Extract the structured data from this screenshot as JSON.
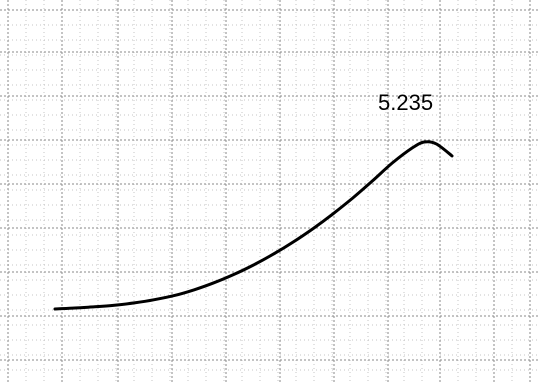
{
  "chart_data": {
    "type": "line",
    "title": "",
    "xlabel": "",
    "ylabel": "",
    "grid": true,
    "peak_label": "5.235",
    "series": [
      {
        "x": [
          0,
          0.05,
          0.1,
          0.15,
          0.2,
          0.25,
          0.3,
          0.35,
          0.4,
          0.45,
          0.5,
          0.55,
          0.6,
          0.65,
          0.7,
          0.75,
          0.8,
          0.85,
          0.9,
          0.93,
          0.96,
          1.0
        ],
        "values": [
          0.0,
          0.03,
          0.07,
          0.12,
          0.19,
          0.29,
          0.42,
          0.6,
          0.82,
          1.08,
          1.38,
          1.72,
          2.1,
          2.52,
          2.98,
          3.48,
          4.02,
          4.58,
          5.05,
          5.235,
          5.18,
          4.8
        ]
      }
    ]
  }
}
